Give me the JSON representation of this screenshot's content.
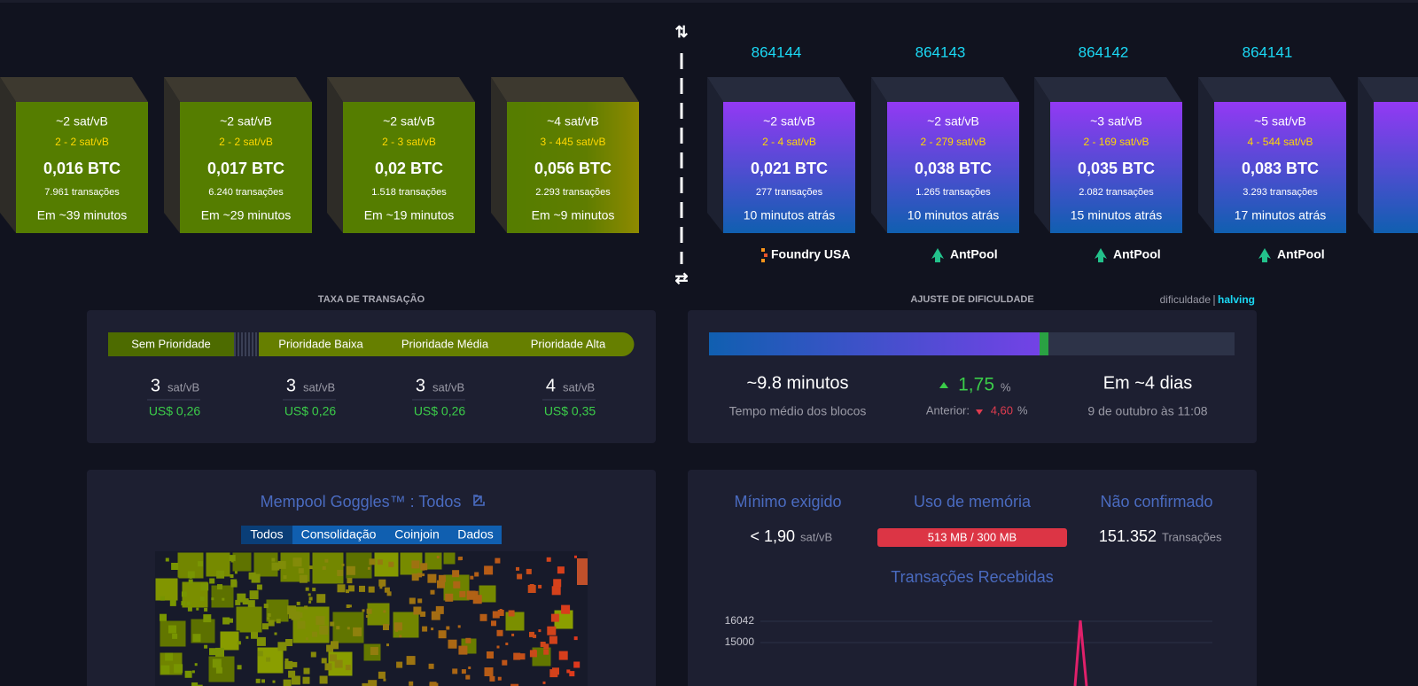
{
  "mempool_blocks": [
    {
      "fee_median": "~2 sat/vB",
      "fee_range": "2 - 2 sat/vB",
      "size": "0,016 BTC",
      "tx": "7.961 transações",
      "eta": "Em ~39 minutos"
    },
    {
      "fee_median": "~2 sat/vB",
      "fee_range": "2 - 2 sat/vB",
      "size": "0,017 BTC",
      "tx": "6.240 transações",
      "eta": "Em ~29 minutos"
    },
    {
      "fee_median": "~2 sat/vB",
      "fee_range": "2 - 3 sat/vB",
      "size": "0,02 BTC",
      "tx": "1.518 transações",
      "eta": "Em ~19 minutos"
    },
    {
      "fee_median": "~4 sat/vB",
      "fee_range": "3 - 445 sat/vB",
      "size": "0,056 BTC",
      "tx": "2.293 transações",
      "eta": "Em ~9 minutos"
    }
  ],
  "blocks": [
    {
      "height": "864144",
      "fee_median": "~2 sat/vB",
      "fee_range": "2 - 4 sat/vB",
      "size": "0,021 BTC",
      "tx": "277 transações",
      "age": "10 minutos atrás",
      "pool": "Foundry USA"
    },
    {
      "height": "864143",
      "fee_median": "~2 sat/vB",
      "fee_range": "2 - 279 sat/vB",
      "size": "0,038 BTC",
      "tx": "1.265 transações",
      "age": "10 minutos atrás",
      "pool": "AntPool"
    },
    {
      "height": "864142",
      "fee_median": "~3 sat/vB",
      "fee_range": "2 - 169 sat/vB",
      "size": "0,035 BTC",
      "tx": "2.082 transações",
      "age": "15 minutos atrás",
      "pool": "AntPool"
    },
    {
      "height": "864141",
      "fee_median": "~5 sat/vB",
      "fee_range": "4 - 544 sat/vB",
      "size": "0,083 BTC",
      "tx": "3.293 transações",
      "age": "17 minutos atrás",
      "pool": "AntPool"
    }
  ],
  "fees": {
    "title": "TAXA DE TRANSAÇÃO",
    "tabs": [
      "Sem Prioridade",
      "Prioridade Baixa",
      "Prioridade Média",
      "Prioridade Alta"
    ],
    "items": [
      {
        "value": "3",
        "unit": "sat/vB",
        "usd": "US$ 0,26"
      },
      {
        "value": "3",
        "unit": "sat/vB",
        "usd": "US$ 0,26"
      },
      {
        "value": "3",
        "unit": "sat/vB",
        "usd": "US$ 0,26"
      },
      {
        "value": "4",
        "unit": "sat/vB",
        "usd": "US$ 0,35"
      }
    ]
  },
  "difficulty": {
    "title": "AJUSTE DE DIFICULDADE",
    "links": [
      "dificuldade",
      "halving"
    ],
    "block_time": "~9.8 minutos",
    "block_time_label": "Tempo médio dos blocos",
    "change": "1,75",
    "change_unit": "%",
    "previous_label": "Anterior:",
    "previous": "4,60",
    "previous_unit": "%",
    "eta": "Em ~4 dias",
    "eta_date": "9 de outubro às 11:08"
  },
  "goggles": {
    "title": "Mempool Goggles™ : Todos",
    "filters": [
      "Todos",
      "Consolidação",
      "Coinjoin",
      "Dados"
    ]
  },
  "stats": {
    "min_label": "Mínimo exigido",
    "min_value": "< 1,90",
    "min_unit": "sat/vB",
    "memory_label": "Uso de memória",
    "memory_value": "513 MB / 300 MB",
    "unconfirmed_label": "Não confirmado",
    "unconfirmed_value": "151.352",
    "unconfirmed_unit": "Transações"
  },
  "incoming": {
    "title": "Transações Recebidas",
    "yticks": [
      "16042",
      "15000"
    ]
  }
}
